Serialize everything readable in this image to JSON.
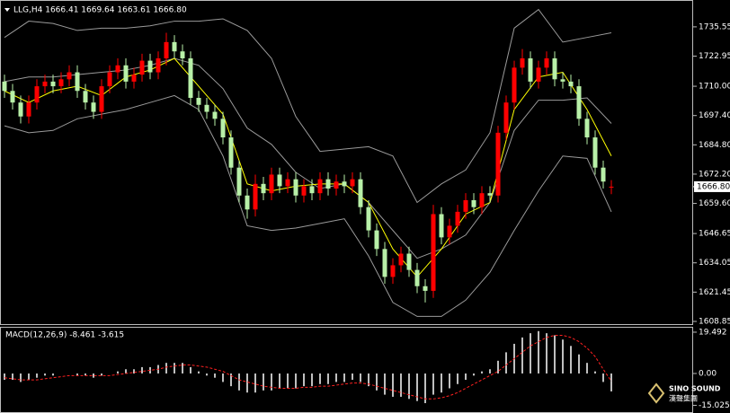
{
  "chart_data": [
    {
      "type": "candlestick",
      "title": "LLG,H4  1666.41 1669.64 1663.61 1666.80",
      "open": [
        1712,
        1708,
        1703,
        1697,
        1703,
        1710,
        1712,
        1710,
        1713,
        1716,
        1708,
        1703,
        1699,
        1710,
        1716,
        1719,
        1712,
        1715,
        1721,
        1716,
        1722,
        1729,
        1725,
        1722,
        1705,
        1702,
        1699,
        1696,
        1688,
        1675,
        1663,
        1657,
        1668,
        1664,
        1672,
        1667,
        1670,
        1663,
        1667,
        1664,
        1670,
        1666,
        1669,
        1667,
        1670,
        1658,
        1648,
        1640,
        1628,
        1633,
        1638,
        1631,
        1624,
        1622,
        1655,
        1645,
        1650,
        1656,
        1661,
        1658,
        1664,
        1663,
        1690,
        1703,
        1718,
        1722,
        1712,
        1718,
        1722,
        1713,
        1712,
        1710,
        1696,
        1688,
        1675,
        1666.41
      ],
      "high": [
        1715,
        1711,
        1706,
        1706,
        1713,
        1715,
        1715,
        1716,
        1719,
        1719,
        1711,
        1706,
        1713,
        1719,
        1722,
        1722,
        1718,
        1724,
        1724,
        1725,
        1733,
        1732,
        1728,
        1725,
        1708,
        1705,
        1702,
        1699,
        1691,
        1678,
        1666,
        1672,
        1671,
        1675,
        1675,
        1673,
        1673,
        1670,
        1670,
        1673,
        1673,
        1672,
        1672,
        1673,
        1673,
        1661,
        1651,
        1643,
        1636,
        1641,
        1641,
        1634,
        1627,
        1659,
        1658,
        1653,
        1659,
        1664,
        1664,
        1667,
        1667,
        1693,
        1706,
        1721,
        1726,
        1725,
        1721,
        1725,
        1725,
        1716,
        1715,
        1713,
        1699,
        1691,
        1678,
        1669.64
      ],
      "low": [
        1705,
        1700,
        1694,
        1694,
        1700,
        1707,
        1707,
        1707,
        1710,
        1705,
        1700,
        1696,
        1696,
        1707,
        1713,
        1709,
        1709,
        1712,
        1713,
        1713,
        1719,
        1722,
        1719,
        1702,
        1699,
        1696,
        1693,
        1685,
        1672,
        1660,
        1653,
        1654,
        1661,
        1661,
        1664,
        1664,
        1660,
        1660,
        1661,
        1661,
        1663,
        1663,
        1664,
        1664,
        1655,
        1645,
        1637,
        1625,
        1625,
        1630,
        1628,
        1621,
        1617,
        1619,
        1642,
        1642,
        1647,
        1653,
        1655,
        1655,
        1660,
        1660,
        1687,
        1700,
        1715,
        1709,
        1709,
        1715,
        1710,
        1709,
        1707,
        1693,
        1685,
        1672,
        1666,
        1663.61
      ],
      "close": [
        1708,
        1703,
        1697,
        1703,
        1710,
        1712,
        1710,
        1713,
        1716,
        1708,
        1703,
        1699,
        1710,
        1716,
        1719,
        1712,
        1715,
        1721,
        1716,
        1722,
        1729,
        1725,
        1722,
        1705,
        1702,
        1699,
        1696,
        1688,
        1675,
        1663,
        1657,
        1668,
        1664,
        1672,
        1667,
        1670,
        1663,
        1667,
        1664,
        1670,
        1666,
        1669,
        1667,
        1670,
        1658,
        1648,
        1640,
        1628,
        1633,
        1638,
        1631,
        1624,
        1622,
        1655,
        1645,
        1650,
        1656,
        1661,
        1658,
        1664,
        1663,
        1690,
        1703,
        1718,
        1722,
        1712,
        1718,
        1722,
        1713,
        1712,
        1710,
        1696,
        1688,
        1675,
        1669,
        1666.8
      ],
      "up_color": "#ff0000",
      "down_color": "#b8f0a8",
      "bands": {
        "color": "#9a9a9a",
        "x": [
          0,
          3,
          6,
          9,
          12,
          15,
          18,
          21,
          24,
          27,
          30,
          33,
          36,
          39,
          42,
          45,
          48,
          51,
          54,
          57,
          60,
          63,
          66,
          69,
          72,
          75
        ],
        "upper": [
          1731,
          1738,
          1737,
          1734,
          1735,
          1735,
          1736,
          1738,
          1738,
          1739,
          1734,
          1722,
          1697,
          1682,
          1683,
          1684,
          1680,
          1660,
          1668,
          1674,
          1690,
          1735,
          1743,
          1729,
          1731,
          1733
        ],
        "middle": [
          1712,
          1714,
          1714,
          1715,
          1716,
          1717,
          1719,
          1722,
          1719,
          1709,
          1692,
          1685,
          1673,
          1666,
          1668,
          1660,
          1648,
          1636,
          1640,
          1646,
          1660,
          1691,
          1704,
          1704,
          1705,
          1694
        ],
        "lower": [
          1693,
          1690,
          1691,
          1696,
          1698,
          1700,
          1703,
          1706,
          1700,
          1680,
          1650,
          1648,
          1649,
          1651,
          1653,
          1637,
          1617,
          1611,
          1611,
          1618,
          1630,
          1648,
          1665,
          1680,
          1679,
          1656
        ]
      },
      "ma": {
        "color": "#ffff00",
        "values": [
          1708,
          1703,
          1708,
          1710,
          1706,
          1714,
          1717,
          1722,
          1710,
          1698,
          1668,
          1665,
          1667,
          1668,
          1668,
          1660,
          1640,
          1628,
          1640,
          1655,
          1660,
          1700,
          1714,
          1716,
          1700,
          1680
        ]
      },
      "ylim": [
        1607.3,
        1747.1
      ],
      "yticks": [
        1735.55,
        1722.95,
        {
          "value": 1710,
          "label": "1710.00"
        },
        {
          "value": 1697.4,
          "label": "1697.40"
        },
        {
          "value": 1684.8,
          "label": "1684.80"
        },
        {
          "value": 1672.2,
          "label": "1672.20"
        },
        {
          "value": 1659.6,
          "label": "1659.60"
        },
        1646.65,
        1634.05,
        1621.45,
        1608.85
      ],
      "last_price": {
        "value": 1666.8,
        "label": "1666.80"
      }
    },
    {
      "type": "macd",
      "title": "MACD(12,26,9) -8.461 -3.615",
      "histogram": [
        -3,
        -3,
        -4,
        -3,
        -2,
        -1,
        -1,
        0,
        0,
        -1,
        -1,
        -2,
        -1,
        0,
        1,
        2,
        2,
        3,
        3,
        4,
        5,
        5,
        5,
        3,
        1,
        -1,
        -2,
        -4,
        -6,
        -8,
        -9,
        -9,
        -8,
        -8,
        -7,
        -7,
        -7,
        -6,
        -6,
        -5,
        -5,
        -4,
        -4,
        -3,
        -4,
        -6,
        -8,
        -10,
        -11,
        -11,
        -12,
        -13,
        -14,
        -10,
        -9,
        -7,
        -5,
        -3,
        -1,
        1,
        2,
        6,
        10,
        14,
        17,
        19,
        20,
        19,
        18,
        16,
        13,
        9,
        5,
        1,
        -4,
        -8.461
      ],
      "signal": [
        -2,
        -2.5,
        -3,
        -3,
        -3,
        -2.5,
        -2,
        -1.5,
        -1,
        -1,
        -1,
        -1,
        -1,
        -1,
        -0.5,
        0,
        0.5,
        1,
        1.5,
        2,
        3,
        3.5,
        4,
        4,
        3.5,
        3,
        2,
        1,
        -1,
        -3,
        -4,
        -5,
        -6,
        -6.5,
        -7,
        -7,
        -7,
        -6.5,
        -6.5,
        -6,
        -6,
        -5.5,
        -5,
        -4.5,
        -4.5,
        -5,
        -6,
        -7,
        -8,
        -9,
        -10,
        -11,
        -12,
        -12,
        -11.5,
        -10.5,
        -9,
        -7,
        -5,
        -3,
        -1,
        1,
        4,
        7,
        10,
        13,
        15,
        17,
        18,
        18,
        17,
        15,
        12,
        8,
        2,
        -3.615
      ],
      "histogram_color": "#ffffff",
      "signal_color": "#ff2020",
      "ylim": [
        -17.8,
        21.6
      ],
      "yticks": [
        19.492,
        {
          "value": 0,
          "label": "0.00"
        },
        -15.025
      ]
    }
  ],
  "watermark": {
    "name": "SINO SOUND",
    "subtitle": "漢聲集團"
  }
}
